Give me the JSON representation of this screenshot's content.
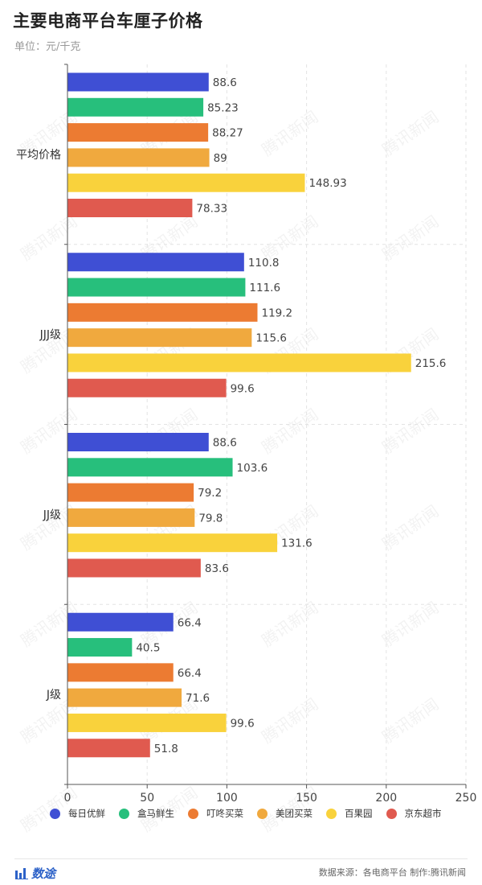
{
  "header": {
    "title": "主要电商平台车厘子价格",
    "subtitle": "单位：元/千克"
  },
  "footer": {
    "brand": "数途",
    "source": "数据来源：各电商平台 制作:腾讯新闻"
  },
  "watermark": "腾讯新闻",
  "chart_data": {
    "type": "bar",
    "orientation": "horizontal",
    "categories": [
      "平均价格",
      "JJJ级",
      "JJ级",
      "J级"
    ],
    "series": [
      {
        "name": "每日优鲜",
        "color": "#3f4fd4",
        "values": [
          88.6,
          110.8,
          88.6,
          66.4
        ]
      },
      {
        "name": "盒马鲜生",
        "color": "#27bf7c",
        "values": [
          85.23,
          111.6,
          103.6,
          40.5
        ]
      },
      {
        "name": "叮咚买菜",
        "color": "#ec7b32",
        "values": [
          88.27,
          119.2,
          79.2,
          66.4
        ]
      },
      {
        "name": "美团买菜",
        "color": "#f0a93e",
        "values": [
          89,
          115.6,
          79.8,
          71.6
        ]
      },
      {
        "name": "百果园",
        "color": "#f9d23c",
        "values": [
          148.93,
          215.6,
          131.6,
          99.6
        ]
      },
      {
        "name": "京东超市",
        "color": "#e05a4f",
        "values": [
          78.33,
          99.6,
          83.6,
          51.8
        ]
      }
    ],
    "xlim": [
      0,
      250
    ],
    "xticks": [
      0,
      50,
      100,
      150,
      200,
      250
    ],
    "grid": true,
    "legend": "bottom"
  }
}
